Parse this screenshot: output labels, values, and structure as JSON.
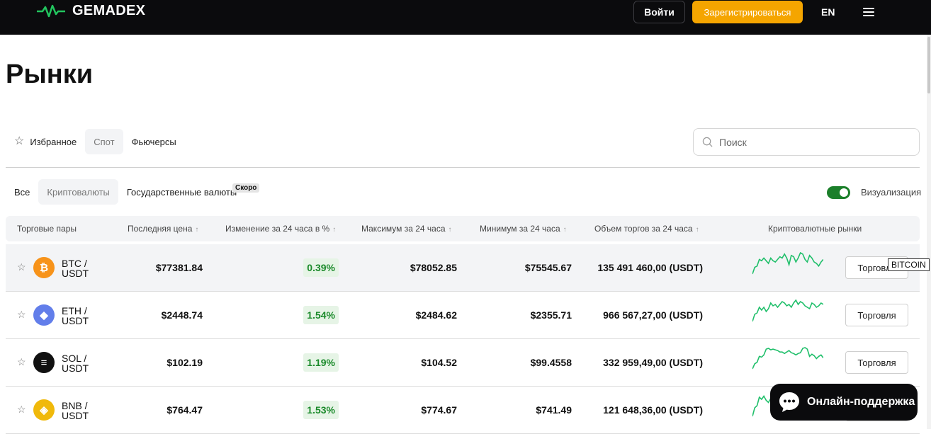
{
  "header": {
    "logo_text": "GEMADEX",
    "login_label": "Войти",
    "register_label": "Зарегистрироваться",
    "lang": "EN",
    "accent_color": "#f5a500",
    "logo_color": "#22c55e"
  },
  "page": {
    "title": "Рынки"
  },
  "market_tabs": [
    {
      "label": "Избранное",
      "icon": "star-icon"
    },
    {
      "label": "Спот",
      "active": true
    },
    {
      "label": "Фьючерсы"
    }
  ],
  "search": {
    "placeholder": "Поиск"
  },
  "category_tabs": [
    {
      "label": "Все"
    },
    {
      "label": "Криптовалюты",
      "active": true
    },
    {
      "label": "Государственные валюты",
      "badge": "Скоро"
    }
  ],
  "visualization": {
    "label": "Визуализация",
    "enabled": true
  },
  "table": {
    "headers": {
      "pair": "Торговые пары",
      "last_price": "Последняя цена",
      "change": "Изменение за 24 часа в %",
      "high": "Максимум за 24 часа",
      "low": "Минимум за 24 часа",
      "volume": "Объем торгов за 24 часа",
      "markets": "Криптовалютные рынки"
    },
    "trade_label": "Торговля",
    "rows": [
      {
        "base": "BTC /",
        "quote": "USDT",
        "icon": "bitcoin-icon",
        "icon_color": "#f7931a",
        "price": "$77381.84",
        "change": "0.39%",
        "high": "$78052.85",
        "low": "$75545.67",
        "volume": "135 491 460,00 (USDT)",
        "spark": [
          7,
          12,
          13,
          18,
          17,
          19,
          17,
          15,
          19,
          17,
          16,
          18,
          20,
          19,
          22,
          19,
          14,
          21,
          20,
          16,
          19,
          23,
          22,
          18,
          16,
          21,
          19,
          16,
          15,
          13,
          16,
          18
        ]
      },
      {
        "base": "ETH /",
        "quote": "USDT",
        "icon": "ethereum-icon",
        "icon_color": "#627eea",
        "price": "$2448.74",
        "change": "1.54%",
        "high": "$2484.62",
        "low": "$2355.71",
        "volume": "966 567,27,00 (USDT)",
        "spark": [
          5,
          10,
          11,
          15,
          13,
          15,
          12,
          14,
          18,
          16,
          17,
          15,
          17,
          19,
          18,
          16,
          17,
          15,
          18,
          20,
          17,
          19,
          18,
          16,
          15,
          14,
          18,
          17,
          15,
          16,
          18,
          17
        ]
      },
      {
        "base": "SOL /",
        "quote": "USDT",
        "icon": "solana-icon",
        "icon_color": "#111111",
        "price": "$102.19",
        "change": "1.19%",
        "high": "$104.52",
        "low": "$99.4558",
        "volume": "332 959,49,00 (USDT)",
        "spark": [
          3,
          10,
          12,
          20,
          19,
          22,
          30,
          31,
          29,
          30,
          29,
          28,
          26,
          26,
          24,
          26,
          28,
          25,
          24,
          22,
          24,
          25,
          31,
          32,
          30,
          20,
          23,
          21,
          17,
          20,
          22,
          18
        ]
      },
      {
        "base": "BNB /",
        "quote": "USDT",
        "icon": "binance-icon",
        "icon_color": "#f0b90b",
        "price": "$764.47",
        "change": "1.53%",
        "high": "$774.67",
        "low": "$741.49",
        "volume": "121 648,36,00 (USDT)",
        "spark": [
          2,
          10,
          12,
          20,
          18,
          21,
          17,
          15,
          19,
          22,
          18,
          16,
          18
        ]
      }
    ]
  },
  "tooltip": "BITCOIN",
  "support_label": "Онлайн-поддержка"
}
